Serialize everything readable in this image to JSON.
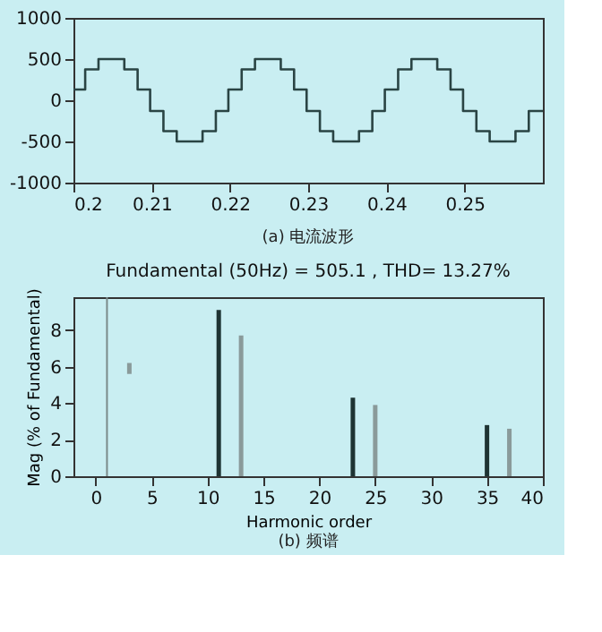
{
  "chart_data": [
    {
      "type": "step",
      "annotations": [
        "(a) 电流波形"
      ],
      "xlim": [
        0.2,
        0.26
      ],
      "xticks": [
        0.2,
        0.21,
        0.22,
        0.23,
        0.24,
        0.25
      ],
      "ylim": [
        -1000,
        1000
      ],
      "yticks": [
        -1000,
        -500,
        0,
        500,
        1000
      ],
      "grid": false,
      "x": [
        0.2,
        0.2015,
        0.2032,
        0.2065,
        0.2082,
        0.2098,
        0.2115,
        0.2132,
        0.2165,
        0.2182,
        0.2198,
        0.2215,
        0.2232,
        0.2265,
        0.2282,
        0.2298,
        0.2315,
        0.2332,
        0.2365,
        0.2382,
        0.2398,
        0.2415,
        0.2432,
        0.2465,
        0.2482,
        0.2498,
        0.2515,
        0.2532,
        0.2565,
        0.2582,
        0.26
      ],
      "series": [
        {
          "color": "#2a4444",
          "values": [
            130,
            375,
            500,
            375,
            130,
            -130,
            -375,
            -500,
            -375,
            -130,
            130,
            375,
            500,
            375,
            130,
            -130,
            -375,
            -500,
            -375,
            -130,
            130,
            375,
            500,
            375,
            130,
            -130,
            -375,
            -500,
            -375,
            -130,
            -130
          ]
        }
      ]
    },
    {
      "type": "bar",
      "title": "Fundamental (50Hz) = 505.1 , THD= 13.27%",
      "xlabel": "Harmonic order",
      "ylabel": "Mag (% of Fundamental)",
      "annotations": [
        "(b) 频谱"
      ],
      "xlim": [
        -2,
        40
      ],
      "xticks": [
        0,
        5,
        10,
        15,
        20,
        25,
        30,
        35,
        40
      ],
      "ylim": [
        0,
        9.8
      ],
      "yticks": [
        0,
        2,
        4,
        6,
        8
      ],
      "grid": false,
      "x": [
        3,
        11,
        13,
        23,
        25,
        35,
        37
      ],
      "values": [
        0.6,
        9.1,
        7.7,
        4.3,
        3.9,
        2.8,
        2.6
      ],
      "base": [
        5.6,
        0,
        0,
        0,
        0,
        0,
        0
      ],
      "colors": [
        "#8a9a9a",
        "#1e3333",
        "#8a9a9a",
        "#1e3333",
        "#8a9a9a",
        "#1e3333",
        "#8a9a9a"
      ],
      "ref_lines": [
        {
          "axis": "x",
          "value": 1,
          "color": "#7a8a8a"
        }
      ]
    }
  ]
}
